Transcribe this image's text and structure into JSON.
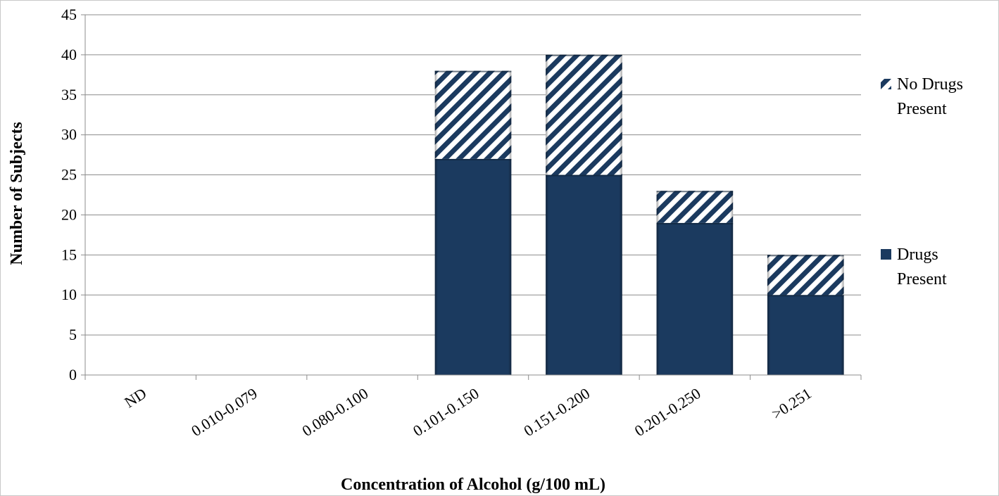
{
  "chart_data": {
    "type": "bar",
    "stacked": true,
    "title": "",
    "xlabel": "Concentration of Alcohol (g/100 mL)",
    "ylabel": "Number of Subjects",
    "ylim": [
      0,
      45
    ],
    "yticks": [
      0,
      5,
      10,
      15,
      20,
      25,
      30,
      35,
      40,
      45
    ],
    "grid": true,
    "legend_position": "right",
    "categories": [
      "ND",
      "0.010-0.079",
      "0.080-0.100",
      "0.101-0.150",
      "0.151-0.200",
      "0.201-0.250",
      ">0.251"
    ],
    "series": [
      {
        "name": "Drugs Present",
        "values": [
          0,
          0,
          0,
          27,
          25,
          19,
          10
        ],
        "color": "#1b3a5f",
        "pattern": "solid"
      },
      {
        "name": "No Drugs Present",
        "values": [
          0,
          0,
          0,
          11,
          15,
          4,
          5
        ],
        "color": "#1b3a5f",
        "pattern": "diagonal-stripes"
      }
    ],
    "legend": [
      {
        "lines": [
          "No Drugs",
          "Present"
        ]
      },
      {
        "lines": [
          "Drugs",
          "Present"
        ]
      }
    ]
  }
}
